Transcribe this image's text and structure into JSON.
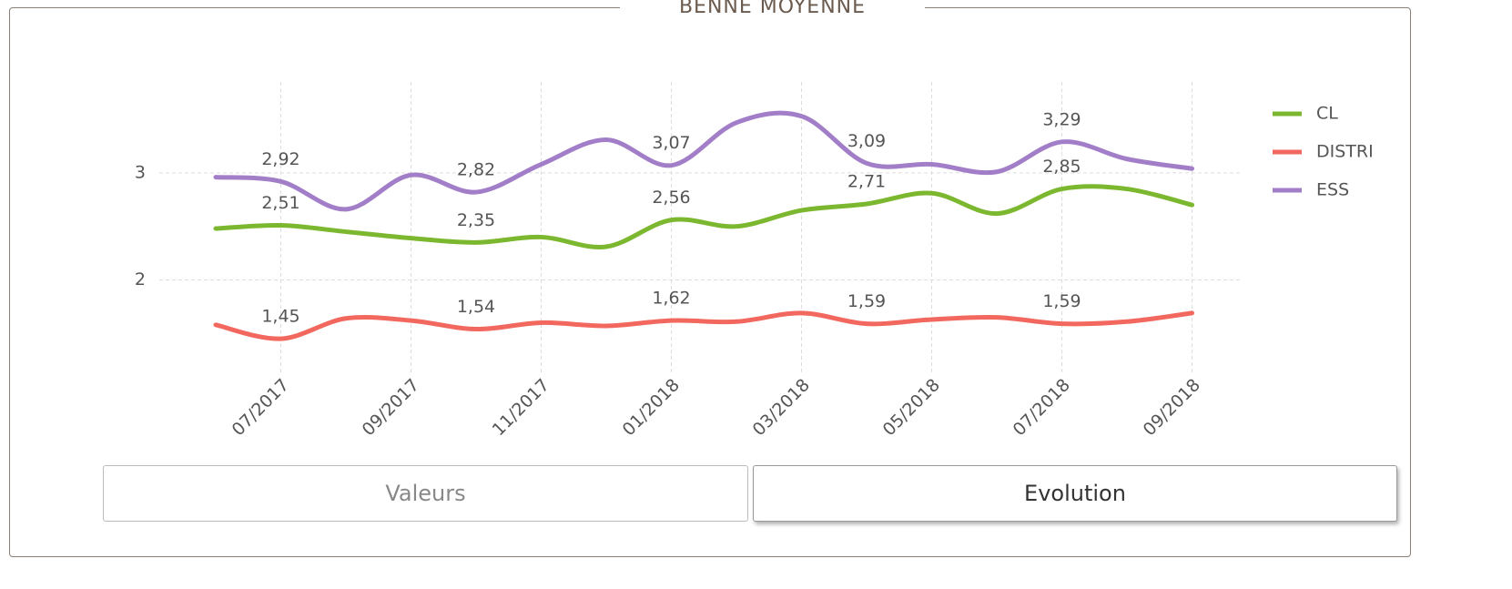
{
  "chart_data": {
    "type": "line",
    "title": "BENNE MOYENNE",
    "categories": [
      null,
      "07/2017",
      null,
      "09/2017",
      null,
      "11/2017",
      null,
      "01/2018",
      null,
      "03/2018",
      null,
      "05/2018",
      null,
      "07/2018",
      null,
      "09/2018"
    ],
    "series": [
      {
        "name": "CL",
        "color": "#7cb82f",
        "values": [
          2.48,
          2.51,
          2.45,
          2.39,
          2.35,
          2.4,
          2.31,
          2.56,
          2.5,
          2.65,
          2.71,
          2.81,
          2.62,
          2.85,
          2.85,
          2.7
        ],
        "value_labels": [
          null,
          "2,51",
          null,
          null,
          "2,35",
          null,
          null,
          "2,56",
          null,
          null,
          "2,71",
          null,
          null,
          "2,85",
          null,
          null
        ]
      },
      {
        "name": "DISTRI",
        "color": "#f2685f",
        "values": [
          1.58,
          1.45,
          1.64,
          1.62,
          1.54,
          1.6,
          1.57,
          1.62,
          1.61,
          1.69,
          1.59,
          1.63,
          1.65,
          1.59,
          1.61,
          1.69
        ],
        "value_labels": [
          null,
          "1,45",
          null,
          null,
          "1,54",
          null,
          null,
          "1,62",
          null,
          null,
          "1,59",
          null,
          null,
          "1,59",
          null,
          null
        ]
      },
      {
        "name": "ESS",
        "color": "#a27ec8",
        "values": [
          2.96,
          2.92,
          2.66,
          2.98,
          2.82,
          3.08,
          3.31,
          3.07,
          3.47,
          3.53,
          3.09,
          3.08,
          3.01,
          3.29,
          3.13,
          3.04
        ],
        "value_labels": [
          null,
          "2,92",
          null,
          null,
          "2,82",
          null,
          null,
          "3,07",
          null,
          null,
          "3,09",
          null,
          null,
          "3,29",
          null,
          null
        ]
      }
    ],
    "ylim": [
      1,
      3.85
    ],
    "yticks": [
      2,
      3
    ],
    "grid": true,
    "legend": "right"
  },
  "buttons": [
    "Valeurs",
    "Evolution"
  ]
}
